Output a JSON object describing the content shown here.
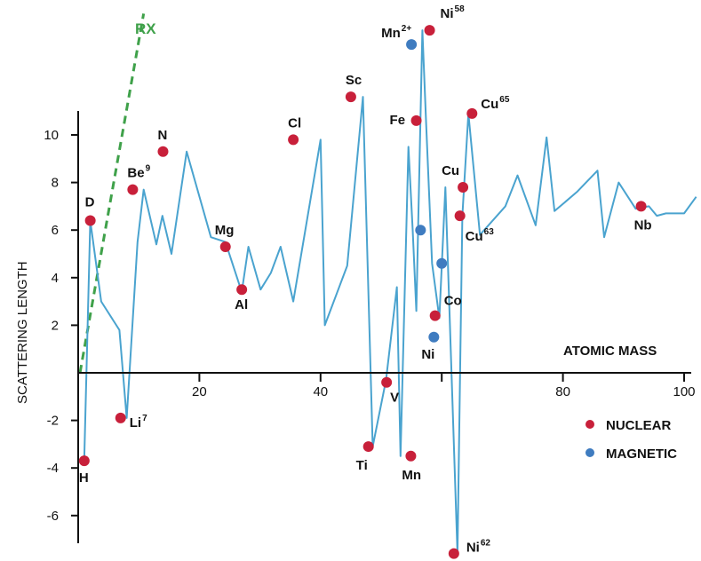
{
  "chart_data": {
    "type": "scatter",
    "xlabel": "ATOMIC MASS",
    "ylabel": "SCATTERING LENGTH",
    "xlim": [
      0,
      102
    ],
    "ylim": [
      -7.8,
      14.8
    ],
    "x_ticks": [
      20,
      40,
      80,
      100
    ],
    "x_tick_labels": [
      "20",
      "40",
      "80",
      "100"
    ],
    "y_ticks": [
      10,
      8,
      6,
      4,
      2,
      -2,
      -4,
      -6
    ],
    "y_tick_labels": [
      "10",
      "8",
      "6",
      "4",
      "2",
      "-2",
      "-4",
      "-6"
    ],
    "grid": false,
    "legend_position": "bottom-right",
    "colors": {
      "line": "#4aa3cf",
      "nuclear": "#c8203a",
      "magnetic": "#3f7cc0",
      "rx": "#3fa14a"
    },
    "rx_line": {
      "label": "RX",
      "x": [
        0.3,
        10.8
      ],
      "y": [
        0,
        14.8
      ]
    },
    "trend_line": {
      "x": [
        1,
        2,
        3.8,
        6.8,
        8,
        9.8,
        10.8,
        12.9,
        13.9,
        15.4,
        17.9,
        21.9,
        24.3,
        27,
        28.1,
        30.1,
        31.8,
        33.4,
        35.5,
        40,
        40.7,
        44.4,
        47,
        48.6,
        50.8,
        52.6,
        53.2,
        54.5,
        55.2,
        55.8,
        56.8,
        57.4,
        58.4,
        59.6,
        60.6,
        62.6,
        63.4,
        64.4,
        66.3,
        70.5,
        72.5,
        75.5,
        77.3,
        78.6,
        82.3,
        85.7,
        86.8,
        89.2,
        92,
        94.2,
        95.5,
        97,
        100,
        102
      ],
      "y": [
        -3.7,
        6.4,
        3,
        1.8,
        -1.9,
        5.5,
        7.7,
        5.4,
        6.6,
        5,
        9.3,
        5.7,
        5.5,
        3.4,
        5.3,
        3.5,
        4.2,
        5.3,
        3,
        9.8,
        2,
        4.5,
        11.6,
        -3.1,
        -0.3,
        3.6,
        -3.5,
        9.5,
        6,
        2.6,
        14.4,
        10.6,
        4.6,
        2.3,
        7.8,
        -7.6,
        6.6,
        10.9,
        5.8,
        7,
        8.3,
        6.2,
        9.9,
        6.8,
        7.6,
        8.5,
        5.7,
        8,
        6.9,
        7,
        6.6,
        6.7,
        6.7,
        7.4
      ]
    },
    "series": [
      {
        "name": "NUCLEAR",
        "points": [
          {
            "label": "H",
            "sup": "",
            "x": 1,
            "y": -3.7
          },
          {
            "label": "D",
            "sup": "",
            "x": 2,
            "y": 6.4
          },
          {
            "label": "Li",
            "sup": "7",
            "x": 7,
            "y": -1.9
          },
          {
            "label": "Be",
            "sup": "9",
            "x": 9,
            "y": 7.7
          },
          {
            "label": "N",
            "sup": "",
            "x": 14,
            "y": 9.3
          },
          {
            "label": "Mg",
            "sup": "",
            "x": 24.3,
            "y": 5.3
          },
          {
            "label": "Al",
            "sup": "",
            "x": 27,
            "y": 3.5
          },
          {
            "label": "Cl",
            "sup": "",
            "x": 35.5,
            "y": 9.8
          },
          {
            "label": "Sc",
            "sup": "",
            "x": 45,
            "y": 11.6
          },
          {
            "label": "Ti",
            "sup": "",
            "x": 47.9,
            "y": -3.1
          },
          {
            "label": "V",
            "sup": "",
            "x": 50.9,
            "y": -0.4
          },
          {
            "label": "Mn",
            "sup": "",
            "x": 54.9,
            "y": -3.5
          },
          {
            "label": "Fe",
            "sup": "",
            "x": 55.8,
            "y": 10.6
          },
          {
            "label": "Ni",
            "sup": "58",
            "x": 58,
            "y": 14.4
          },
          {
            "label": "Co",
            "sup": "",
            "x": 58.9,
            "y": 2.4
          },
          {
            "label": "Ni",
            "sup": "62",
            "x": 62,
            "y": -7.6
          },
          {
            "label": "Cu",
            "sup": "63",
            "x": 63,
            "y": 6.6
          },
          {
            "label": "Cu",
            "sup": "",
            "x": 63.5,
            "y": 7.8
          },
          {
            "label": "Cu",
            "sup": "65",
            "x": 65,
            "y": 10.9
          },
          {
            "label": "Nb",
            "sup": "",
            "x": 92.9,
            "y": 7.0
          }
        ]
      },
      {
        "name": "MAGNETIC",
        "points": [
          {
            "label": "Mn",
            "sup": "2+",
            "x": 55,
            "y": 13.8
          },
          {
            "label": "",
            "sup": "",
            "x": 56.5,
            "y": 6.0
          },
          {
            "label": "",
            "sup": "",
            "x": 60,
            "y": 4.6
          },
          {
            "label": "Ni",
            "sup": "",
            "x": 58.7,
            "y": 1.5
          }
        ]
      }
    ]
  }
}
